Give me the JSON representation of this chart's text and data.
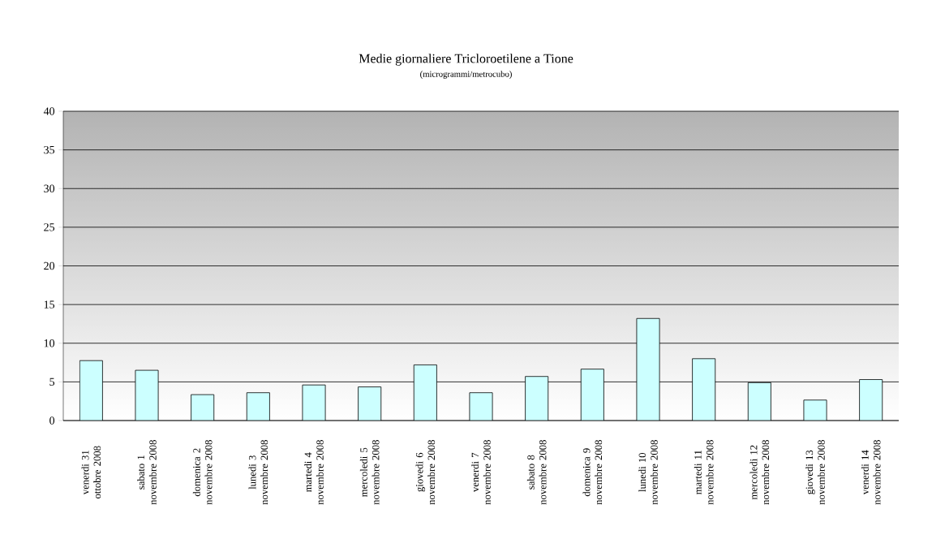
{
  "chart_data": {
    "type": "bar",
    "title": "Medie giornaliere Tricloroetilene a Tione",
    "subtitle": "(microgrammi/metrocubo)",
    "categories": [
      "venerdi 31 ottobre 2008",
      "sabato 1 novembre 2008",
      "domenica 2 novembre 2008",
      "lunedi 3 novembre 2008",
      "martedi 4 novembre 2008",
      "mercoledi 5 novembre 2008",
      "giovedi 6 novembre 2008",
      "venerdi 7 novembre 2008",
      "sabato 8 novembre 2008",
      "domenica 9 novembre 2008",
      "lunedi 10 novembre 2008",
      "martedi 11 novembre 2008",
      "mercoledi 12 novembre 2008",
      "giovedi 13 novembre 2008",
      "venerdi 14 novembre 2008"
    ],
    "values": [
      7.75,
      6.5,
      3.35,
      3.6,
      4.6,
      4.35,
      7.2,
      3.6,
      5.7,
      6.65,
      13.2,
      8.0,
      4.9,
      2.65,
      5.3
    ],
    "color": "#ccffff",
    "ylim": [
      0,
      40
    ],
    "yticks": [
      0,
      5,
      10,
      15,
      20,
      25,
      30,
      35,
      40
    ],
    "grid": "y"
  }
}
